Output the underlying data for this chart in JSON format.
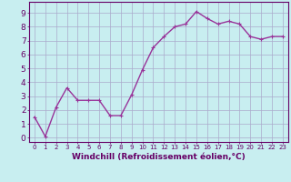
{
  "xlabel": "Windchill (Refroidissement éolien,°C)",
  "x": [
    0,
    1,
    2,
    3,
    4,
    5,
    6,
    7,
    8,
    9,
    10,
    11,
    12,
    13,
    14,
    15,
    16,
    17,
    18,
    19,
    20,
    21,
    22,
    23
  ],
  "y": [
    1.5,
    0.1,
    2.2,
    3.6,
    2.7,
    2.7,
    2.7,
    1.6,
    1.6,
    3.1,
    4.9,
    6.5,
    7.3,
    8.0,
    8.2,
    9.1,
    8.6,
    8.2,
    8.4,
    8.2,
    7.3,
    7.1,
    7.3,
    7.3
  ],
  "line_color": "#993399",
  "marker": "+",
  "marker_size": 3,
  "linewidth": 1.0,
  "markeredgewidth": 0.8,
  "ylim": [
    -0.3,
    9.8
  ],
  "xlim": [
    -0.5,
    23.5
  ],
  "yticks": [
    0,
    1,
    2,
    3,
    4,
    5,
    6,
    7,
    8,
    9
  ],
  "xticks": [
    0,
    1,
    2,
    3,
    4,
    5,
    6,
    7,
    8,
    9,
    10,
    11,
    12,
    13,
    14,
    15,
    16,
    17,
    18,
    19,
    20,
    21,
    22,
    23
  ],
  "background_color": "#c8eef0",
  "grid_color": "#aaaacc",
  "axis_color": "#660066",
  "tick_label_color": "#660066",
  "xlabel_color": "#660066",
  "xlabel_fontsize": 6.5,
  "ytick_label_fontsize": 6.5,
  "xtick_label_fontsize": 5.0
}
